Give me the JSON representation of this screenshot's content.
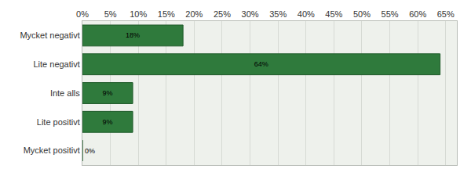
{
  "chart_data": {
    "type": "bar",
    "orientation": "horizontal",
    "categories": [
      "Mycket negativt",
      "Lite negativt",
      "Inte alls",
      "Lite positivt",
      "Mycket positivt"
    ],
    "values": [
      18,
      64,
      9,
      9,
      0
    ],
    "value_labels": [
      "18%",
      "64%",
      "9%",
      "9%",
      "0%"
    ],
    "data_labels": true,
    "color": "#2f7a3c",
    "xlim": [
      0,
      67
    ],
    "xticks": [
      {
        "value": 0,
        "label": "0%"
      },
      {
        "value": 5,
        "label": "5%"
      },
      {
        "value": 10,
        "label": "10%"
      },
      {
        "value": 15,
        "label": "15%"
      },
      {
        "value": 20,
        "label": "20%"
      },
      {
        "value": 25,
        "label": "25%"
      },
      {
        "value": 30,
        "label": "30%"
      },
      {
        "value": 35,
        "label": "35%"
      },
      {
        "value": 40,
        "label": "40%"
      },
      {
        "value": 45,
        "label": "45%"
      },
      {
        "value": 50,
        "label": "50%"
      },
      {
        "value": 55,
        "label": "55%"
      },
      {
        "value": 60,
        "label": "60%"
      },
      {
        "value": 65,
        "label": "65%"
      }
    ],
    "grid": true
  }
}
